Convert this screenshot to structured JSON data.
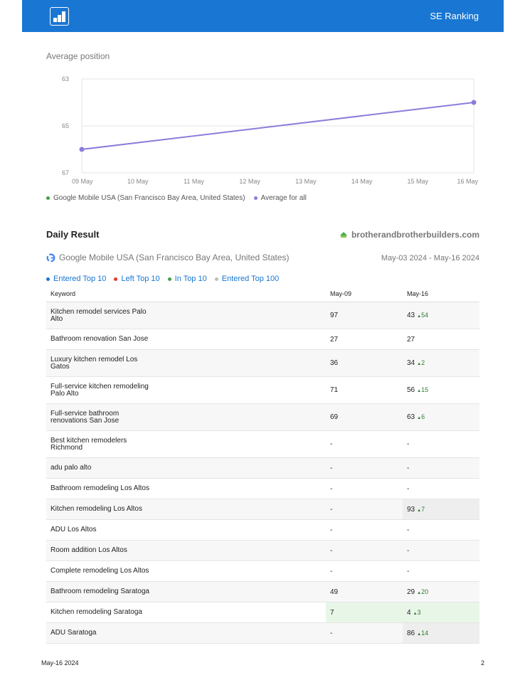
{
  "header": {
    "brand": "SE Ranking",
    "logo_icon": "bar-chart-icon"
  },
  "chart_data": {
    "type": "line",
    "title": "Average position",
    "categories": [
      "09 May",
      "10 May",
      "11 May",
      "12 May",
      "13 May",
      "14 May",
      "15 May",
      "16 May"
    ],
    "series": [
      {
        "name": "Average for all",
        "color": "#8a7ddc",
        "points": [
          {
            "x": "09 May",
            "y": 66.0
          },
          {
            "x": "16 May",
            "y": 64.0
          }
        ]
      }
    ],
    "ylim": [
      63,
      67
    ],
    "yticks": [
      "63",
      "65",
      "67"
    ],
    "y_inverted": true,
    "grid": true,
    "legend_position": "bottom-left"
  },
  "legend": [
    {
      "label": "Google Mobile USA (San Francisco Bay Area, United States)",
      "color": "#43a047"
    },
    {
      "label": "Average for all",
      "color": "#8a7ddc"
    }
  ],
  "daily": {
    "title": "Daily Result",
    "domain": "brotherandbrotherbuilders.com",
    "engine": "Google Mobile USA (San Francisco Bay Area, United States)",
    "date_range": "May-03 2024 - May-16 2024",
    "categories": [
      {
        "label": "Entered Top 10",
        "color": "#1976d2"
      },
      {
        "label": "Left Top 10",
        "color": "#e53935"
      },
      {
        "label": "In Top 10",
        "color": "#43a047"
      },
      {
        "label": "Entered Top 100",
        "color": "#bdbdbd"
      }
    ],
    "columns": [
      "Keyword",
      "May-09",
      "May-16"
    ],
    "rows": [
      {
        "kw": "Kitchen remodel services Palo Alto",
        "d1": "97",
        "d2": "43",
        "delta": "54",
        "tall": true
      },
      {
        "kw": "Bathroom renovation San Jose",
        "d1": "27",
        "d2": "27",
        "delta": "",
        "tall": false
      },
      {
        "kw": "Luxury kitchen remodel Los Gatos",
        "d1": "36",
        "d2": "34",
        "delta": "2",
        "tall": true
      },
      {
        "kw": "Full-service kitchen remodeling Palo Alto",
        "d1": "71",
        "d2": "56",
        "delta": "15",
        "tall": true
      },
      {
        "kw": "Full-service bathroom renovations San Jose",
        "d1": "69",
        "d2": "63",
        "delta": "6",
        "tall": true
      },
      {
        "kw": "Best kitchen remodelers Richmond",
        "d1": "-",
        "d2": "-",
        "delta": "",
        "tall": true
      },
      {
        "kw": "adu palo alto",
        "d1": "-",
        "d2": "-",
        "delta": "",
        "tall": false
      },
      {
        "kw": "Bathroom remodeling Los Altos",
        "d1": "-",
        "d2": "-",
        "delta": "",
        "tall": false
      },
      {
        "kw": "Kitchen remodeling Los Altos",
        "d1": "-",
        "d2": "93",
        "delta": "7",
        "tall": false,
        "hl2": "gray"
      },
      {
        "kw": "ADU Los Altos",
        "d1": "-",
        "d2": "-",
        "delta": "",
        "tall": false
      },
      {
        "kw": "Room addition Los Altos",
        "d1": "-",
        "d2": "-",
        "delta": "",
        "tall": false
      },
      {
        "kw": "Complete remodeling Los Altos",
        "d1": "-",
        "d2": "-",
        "delta": "",
        "tall": false
      },
      {
        "kw": "Bathroom remodeling Saratoga",
        "d1": "49",
        "d2": "29",
        "delta": "20",
        "tall": false
      },
      {
        "kw": "Kitchen remodeling Saratoga",
        "d1": "7",
        "d2": "4",
        "delta": "3",
        "tall": false,
        "hl1": "green",
        "hl2": "green"
      },
      {
        "kw": "ADU Saratoga",
        "d1": "-",
        "d2": "86",
        "delta": "14",
        "tall": false,
        "hl2": "gray"
      }
    ]
  },
  "footer": {
    "date": "May-16 2024",
    "page": "2"
  }
}
